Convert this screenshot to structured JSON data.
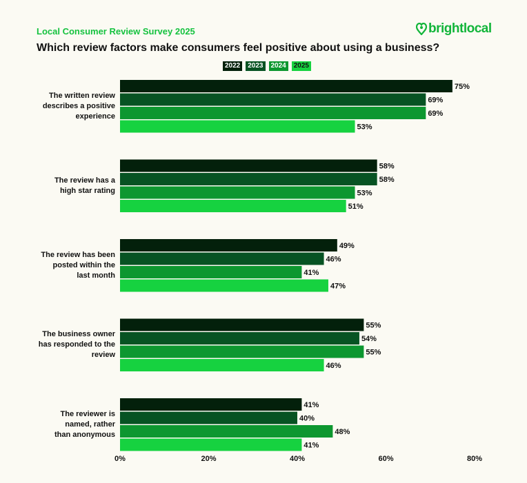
{
  "header": {
    "survey_label": "Local Consumer Review Survey 2025",
    "brand": "brightlocal",
    "brand_icon": "heart-location-icon",
    "brand_color": "#12b53a"
  },
  "chart_data": {
    "type": "bar",
    "orientation": "horizontal",
    "title": "Which review factors make consumers feel positive about using a business?",
    "xlim": [
      0,
      80
    ],
    "xticks": [
      "0%",
      "20%",
      "40%",
      "60%",
      "80%"
    ],
    "grid": false,
    "legend_position": "top-center",
    "categories": [
      "The written review describes a positive experience",
      "The review has a high star rating",
      "The review has been posted within the last month",
      "The business owner has responded to the review",
      "The reviewer is named, rather than anonymous"
    ],
    "series": [
      {
        "name": "2022",
        "color": "#03200b",
        "values": [
          75,
          58,
          49,
          55,
          41
        ]
      },
      {
        "name": "2023",
        "color": "#075323",
        "values": [
          69,
          58,
          46,
          54,
          40
        ]
      },
      {
        "name": "2024",
        "color": "#0d9730",
        "values": [
          69,
          53,
          41,
          55,
          48
        ]
      },
      {
        "name": "2025",
        "color": "#16d240",
        "values": [
          53,
          51,
          47,
          46,
          41
        ]
      }
    ],
    "value_suffix": "%"
  }
}
